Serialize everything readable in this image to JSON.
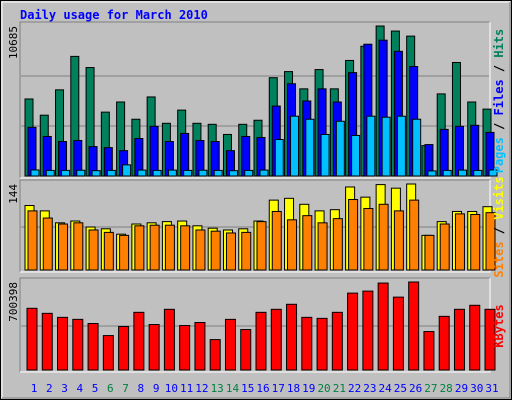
{
  "title": "Daily usage for March 2010",
  "separator": " / ",
  "chart_data": [
    {
      "type": "bar",
      "ylim": [
        0,
        10685
      ],
      "yticks": [
        10685
      ],
      "grid": [
        3562,
        7123
      ],
      "series": [
        {
          "name": "Hits",
          "color": "#00805c",
          "values": [
            5487,
            4332,
            6137,
            8520,
            7725,
            4549,
            5271,
            4043,
            5632,
            3754,
            4693,
            3754,
            3682,
            2960,
            3682,
            3971,
            7003,
            7437,
            6209,
            7581,
            6209,
            8231,
            9242,
            10685,
            10325,
            9964,
            2166,
            5848,
            8086,
            5271,
            4765
          ]
        },
        {
          "name": "Files",
          "color": "#0000ff",
          "values": [
            3466,
            2816,
            2455,
            2527,
            2094,
            2022,
            1805,
            2671,
            3538,
            2455,
            3032,
            2527,
            2455,
            1805,
            2816,
            2744,
            4982,
            6570,
            5343,
            6209,
            5271,
            7364,
            9386,
            9675,
            8881,
            7798,
            2238,
            3321,
            3538,
            3610,
            3105
          ]
        },
        {
          "name": "Pages",
          "color": "#00c0ff",
          "values": [
            430,
            400,
            400,
            410,
            380,
            400,
            794,
            420,
            400,
            420,
            400,
            410,
            400,
            380,
            400,
            420,
            2599,
            4260,
            4043,
            2960,
            3899,
            2888,
            4260,
            4188,
            4260,
            4043,
            361,
            400,
            420,
            400,
            430
          ]
        }
      ],
      "legend_order": [
        2,
        1,
        0
      ]
    },
    {
      "type": "bar",
      "ylim": [
        0,
        144
      ],
      "yticks": [
        144
      ],
      "grid": [
        72
      ],
      "series": [
        {
          "name": "Visits",
          "color": "#ffff00",
          "values": [
            108,
            99,
            79,
            82,
            72,
            69,
            60,
            77,
            79,
            81,
            82,
            74,
            70,
            67,
            69,
            82,
            117,
            120,
            110,
            99,
            101,
            139,
            122,
            143,
            137,
            144,
            58,
            81,
            98,
            98,
            106
          ]
        },
        {
          "name": "Sites",
          "color": "#ff8000",
          "values": [
            99,
            87,
            77,
            79,
            67,
            63,
            58,
            74,
            75,
            75,
            74,
            67,
            65,
            62,
            63,
            81,
            98,
            84,
            91,
            79,
            86,
            118,
            103,
            110,
            99,
            117,
            58,
            77,
            94,
            93,
            96
          ]
        }
      ],
      "legend_order": [
        1,
        0
      ]
    },
    {
      "type": "bar",
      "ylim": [
        0,
        700398
      ],
      "yticks": [
        700398
      ],
      "grid": [
        350199
      ],
      "series": [
        {
          "name": "KBytes",
          "color": "#ff0000",
          "values": [
            491000,
            451000,
            419000,
            403000,
            370000,
            274000,
            346000,
            459000,
            362000,
            483000,
            354000,
            378000,
            242000,
            403000,
            322000,
            459000,
            483000,
            523000,
            419000,
            411000,
            459000,
            612000,
            628000,
            692000,
            580000,
            700398,
            306000,
            427000,
            483000,
            515000,
            483000
          ]
        }
      ],
      "legend_order": [
        0
      ],
      "categories": [
        "1",
        "2",
        "3",
        "4",
        "5",
        "6",
        "7",
        "8",
        "9",
        "10",
        "11",
        "12",
        "13",
        "14",
        "15",
        "16",
        "17",
        "18",
        "19",
        "20",
        "21",
        "22",
        "23",
        "24",
        "25",
        "26",
        "27",
        "28",
        "29",
        "30",
        "31"
      ],
      "label_color": "#0000ff",
      "weekend_color": "#008040",
      "weekend_index": [
        5,
        6,
        12,
        13,
        19,
        20,
        26,
        27
      ]
    }
  ]
}
